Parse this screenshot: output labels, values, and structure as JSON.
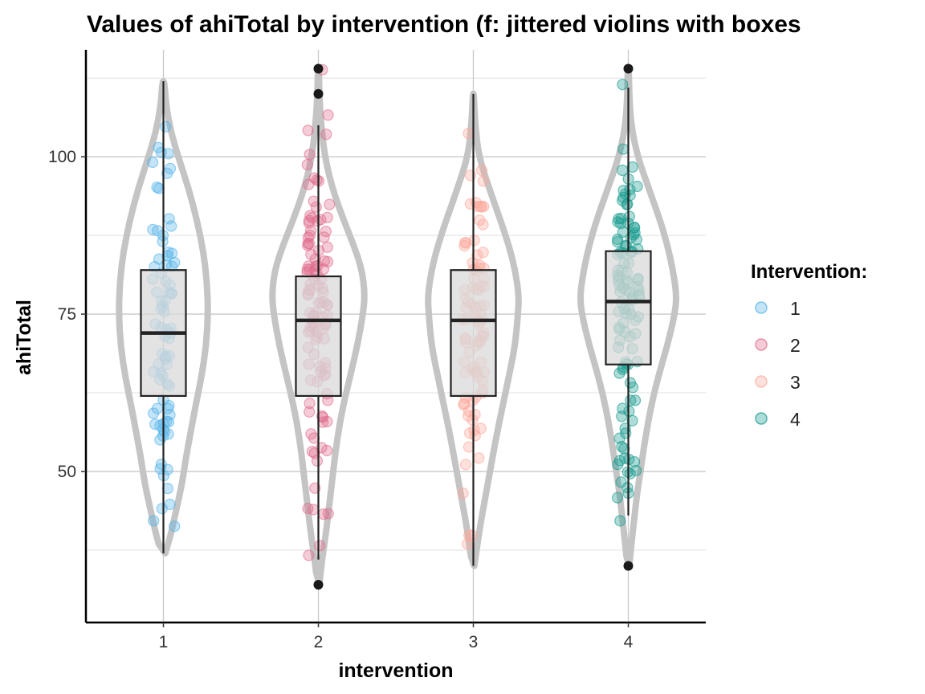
{
  "chart_data": {
    "type": "violin-box-jitter",
    "title": "Values of ahiTotal by intervention (f: jittered violins with boxes",
    "xlabel": "intervention",
    "ylabel": "ahiTotal",
    "categories": [
      "1",
      "2",
      "3",
      "4"
    ],
    "ylim": [
      26,
      117
    ],
    "y_ticks": [
      50,
      75,
      100
    ],
    "y_tick_labels": [
      "50",
      "75",
      "100"
    ],
    "y_minor_grid": [
      37.5,
      62.5,
      87.5,
      112.5
    ],
    "legend": {
      "title": "Intervention:",
      "position": "right",
      "entries": [
        {
          "label": "1",
          "color": "#56B4E9"
        },
        {
          "label": "2",
          "color": "#E06C8C"
        },
        {
          "label": "3",
          "color": "#FBA99C"
        },
        {
          "label": "4",
          "color": "#169B8E"
        }
      ]
    },
    "series": [
      {
        "name": "1",
        "color": "#56B4E9",
        "box": {
          "q1": 62,
          "median": 72,
          "q3": 82,
          "whisker_low": 37,
          "whisker_high": 112
        },
        "outliers": [],
        "violin": {
          "y": [
            37,
            40,
            44,
            48,
            52,
            56,
            60,
            65,
            70,
            75,
            80,
            85,
            90,
            95,
            100,
            104,
            108,
            112
          ],
          "width": [
            0.02,
            0.08,
            0.14,
            0.2,
            0.24,
            0.29,
            0.34,
            0.41,
            0.46,
            0.48,
            0.47,
            0.43,
            0.36,
            0.27,
            0.16,
            0.08,
            0.03,
            0.01
          ]
        },
        "n_points": 80,
        "seed": 11
      },
      {
        "name": "2",
        "color": "#E06C8C",
        "box": {
          "q1": 62,
          "median": 74,
          "q3": 81,
          "whisker_low": 36,
          "whisker_high": 105
        },
        "outliers": [
          32,
          110,
          114
        ],
        "violin": {
          "y": [
            32,
            36,
            40,
            45,
            50,
            55,
            60,
            65,
            70,
            75,
            78,
            82,
            86,
            90,
            95,
            100,
            105,
            110,
            114
          ],
          "width": [
            0.01,
            0.04,
            0.08,
            0.12,
            0.16,
            0.2,
            0.26,
            0.34,
            0.42,
            0.48,
            0.5,
            0.47,
            0.38,
            0.27,
            0.15,
            0.07,
            0.03,
            0.01,
            0.005
          ]
        },
        "n_points": 110,
        "seed": 23
      },
      {
        "name": "3",
        "color": "#FBA99C",
        "box": {
          "q1": 62,
          "median": 74,
          "q3": 82,
          "whisker_low": 35,
          "whisker_high": 110
        },
        "outliers": [],
        "violin": {
          "y": [
            35,
            38,
            42,
            46,
            50,
            55,
            60,
            65,
            70,
            75,
            78,
            82,
            86,
            90,
            95,
            100,
            105,
            110
          ],
          "width": [
            0.01,
            0.04,
            0.08,
            0.13,
            0.18,
            0.24,
            0.31,
            0.38,
            0.45,
            0.48,
            0.49,
            0.45,
            0.38,
            0.29,
            0.17,
            0.06,
            0.02,
            0.005
          ]
        },
        "n_points": 90,
        "seed": 37
      },
      {
        "name": "4",
        "color": "#169B8E",
        "box": {
          "q1": 67,
          "median": 77,
          "q3": 85,
          "whisker_low": 43,
          "whisker_high": 111
        },
        "outliers": [
          35,
          114
        ],
        "violin": {
          "y": [
            35,
            38,
            42,
            46,
            50,
            55,
            60,
            65,
            70,
            75,
            78,
            82,
            86,
            90,
            95,
            100,
            105,
            110,
            114
          ],
          "width": [
            0.01,
            0.03,
            0.06,
            0.09,
            0.13,
            0.18,
            0.24,
            0.32,
            0.42,
            0.5,
            0.52,
            0.48,
            0.42,
            0.34,
            0.22,
            0.1,
            0.03,
            0.01,
            0.005
          ]
        },
        "n_points": 110,
        "seed": 53
      }
    ]
  }
}
